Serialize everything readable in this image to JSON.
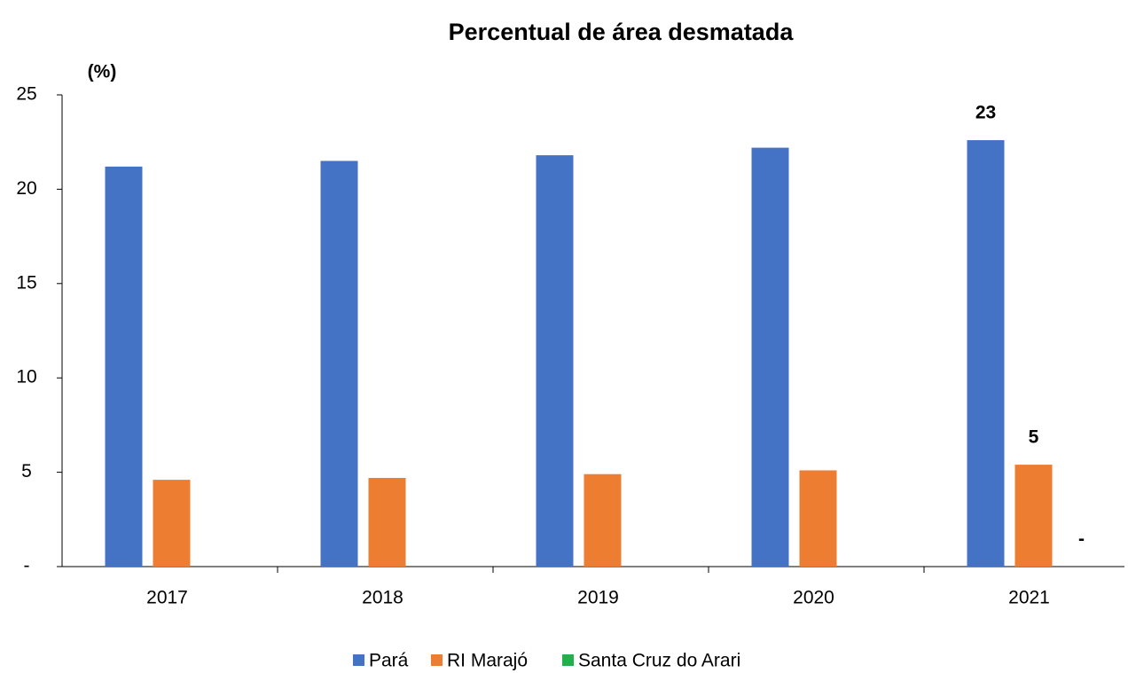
{
  "chart_data": {
    "type": "bar",
    "title": "Percentual de área desmatada",
    "y_label": "(%)",
    "categories": [
      "2017",
      "2018",
      "2019",
      "2020",
      "2021"
    ],
    "series": [
      {
        "name": "Pará",
        "color": "#4472c4",
        "values": [
          21.2,
          21.5,
          21.8,
          22.2,
          22.6
        ],
        "value_labels": [
          null,
          null,
          null,
          null,
          "23"
        ]
      },
      {
        "name": "RI Marajó",
        "color": "#ed7d31",
        "values": [
          4.6,
          4.7,
          4.9,
          5.1,
          5.4
        ],
        "value_labels": [
          null,
          null,
          null,
          null,
          "5"
        ]
      },
      {
        "name": "Santa Cruz do Arari",
        "color": "#21b14b",
        "values": [
          0,
          0,
          0,
          0,
          0
        ],
        "value_labels": [
          null,
          null,
          null,
          null,
          "-"
        ]
      }
    ],
    "ylim": [
      0,
      25
    ],
    "yticks": [
      {
        "value": 0,
        "label": "-"
      },
      5,
      10,
      15,
      20,
      25
    ],
    "grid": false,
    "legend": "bottom"
  }
}
